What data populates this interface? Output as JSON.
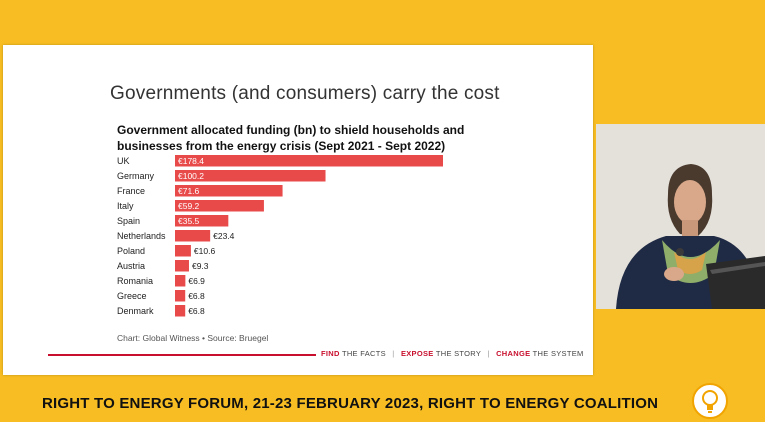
{
  "slide": {
    "title": "Governments (and consumers) carry the cost",
    "source": "Chart: Global Witness • Source: Bruegel",
    "tagline": {
      "part1_strong": "FIND",
      "part1_rest": " THE FACTS",
      "sep": "|",
      "part2_strong": "EXPOSE",
      "part2_rest": " THE STORY",
      "part3_strong": "CHANGE",
      "part3_rest": " THE SYSTEM"
    }
  },
  "chart_data": {
    "type": "bar",
    "orientation": "horizontal",
    "title": "Government allocated funding (bn) to shield households and businesses from the energy crisis (Sept 2021 - Sept 2022)",
    "categories": [
      "UK",
      "Germany",
      "France",
      "Italy",
      "Spain",
      "Netherlands",
      "Poland",
      "Austria",
      "Romania",
      "Greece",
      "Denmark"
    ],
    "values": [
      178.4,
      100.2,
      71.6,
      59.2,
      35.5,
      23.4,
      10.6,
      9.3,
      6.9,
      6.8,
      6.8
    ],
    "labels": [
      "€178.4",
      "€100.2",
      "€71.6",
      "€59.2",
      "€35.5",
      "€23.4",
      "€10.6",
      "€9.3",
      "€6.9",
      "€6.8",
      "€6.8"
    ],
    "xlabel": "",
    "ylabel": "",
    "xlim": [
      0,
      178.4
    ],
    "bar_color": "#e84a4a",
    "label_color_inside": "#ffffff",
    "label_color_outside": "#222222"
  },
  "banner": {
    "text": "RIGHT TO ENERGY FORUM, 21-23 FEBRUARY 2023, RIGHT TO ENERGY COALITION"
  },
  "colors": {
    "background": "#f7bd22",
    "accent_red": "#c8102e"
  }
}
